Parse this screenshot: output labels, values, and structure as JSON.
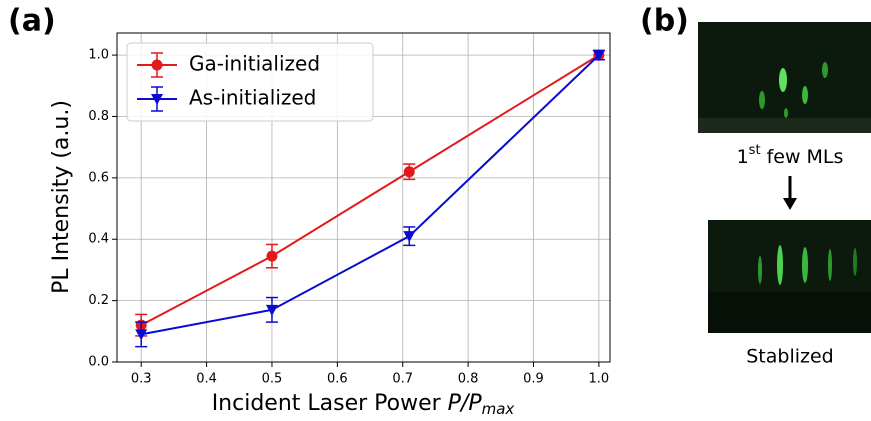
{
  "panel_labels": [
    "(a)",
    "(b)"
  ],
  "panel_b": {
    "caption_top": {
      "base": "1",
      "sup": "st",
      "rest": " few MLs"
    },
    "caption_bottom": "Stablized"
  },
  "chart_data": {
    "type": "line",
    "ylabel": "PL Intensity (a.u.)",
    "xlabel": {
      "text": "Incident Laser Power ",
      "math": "P/P",
      "sub": "max"
    },
    "x": [
      0.3,
      0.5,
      0.71,
      1.0
    ],
    "series": [
      {
        "name": "Ga-initialized",
        "color": "#e31a1c",
        "marker": "o",
        "values": [
          0.12,
          0.345,
          0.62,
          1.0
        ],
        "errors": [
          0.035,
          0.038,
          0.025,
          0.015
        ]
      },
      {
        "name": "As-initialized",
        "color": "#0a0ad0",
        "marker": "v",
        "values": [
          0.09,
          0.17,
          0.41,
          1.0
        ],
        "errors": [
          0.04,
          0.04,
          0.03,
          0.015
        ]
      }
    ],
    "xlim": [
      0.263,
      1.017
    ],
    "ylim": [
      0,
      1.072
    ],
    "xticks": [
      0.3,
      0.4,
      0.5,
      0.6,
      0.7,
      0.8,
      0.9,
      {
        "value": 1,
        "label": "1.0"
      }
    ],
    "yticks": [
      {
        "value": 0,
        "label": "0.0"
      },
      0.2,
      0.4,
      0.6,
      0.8,
      {
        "value": 1,
        "label": "1.0"
      }
    ],
    "grid": true,
    "legend": "upper-left"
  }
}
